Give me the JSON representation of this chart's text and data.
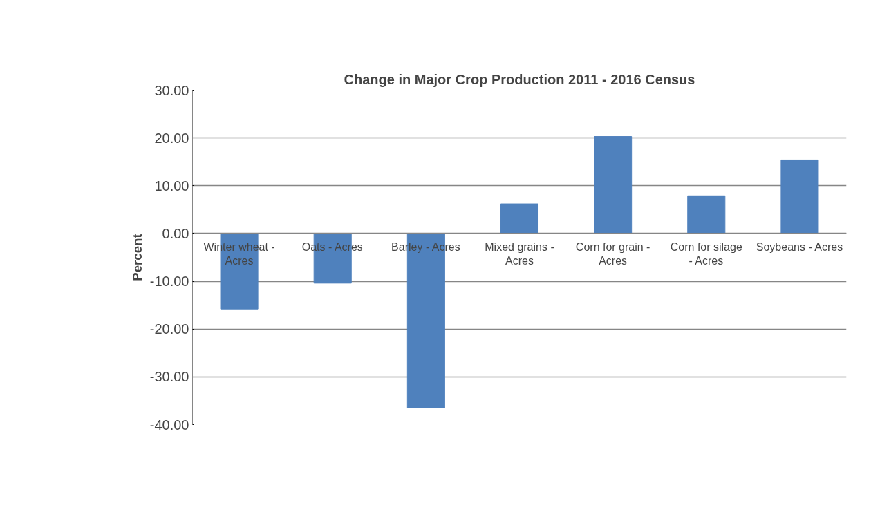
{
  "chart_data": {
    "type": "bar",
    "title": "Change in Major Crop Production 2011 - 2016 Census",
    "ylabel": "Percent",
    "categories": [
      "Winter wheat - Acres",
      "Oats - Acres",
      "Barley - Acres",
      "Mixed grains - Acres",
      "Corn for grain - Acres",
      "Corn for silage - Acres",
      "Soybeans - Acres"
    ],
    "values": [
      -15.8,
      -10.4,
      -36.5,
      6.2,
      20.3,
      7.9,
      15.4
    ],
    "color": "#4f81bd",
    "ylim": [
      -40,
      30
    ],
    "yticks": [
      {
        "value": -40,
        "label": "-40.00"
      },
      {
        "value": -30,
        "label": "-30.00"
      },
      {
        "value": -20,
        "label": "-20.00"
      },
      {
        "value": -10,
        "label": "-10.00"
      },
      {
        "value": 0,
        "label": "0.00"
      },
      {
        "value": 10,
        "label": "10.00"
      },
      {
        "value": 20,
        "label": "20.00"
      },
      {
        "value": 30,
        "label": "30.00"
      }
    ],
    "grid": "y"
  }
}
